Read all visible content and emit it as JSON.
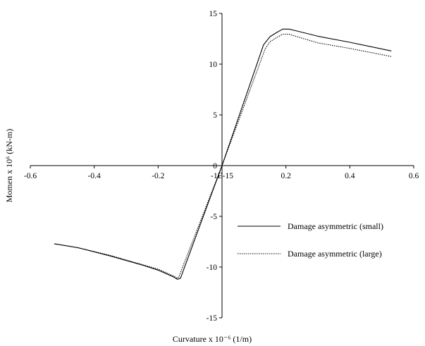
{
  "chart_data": {
    "type": "line",
    "xlabel": "Curvature x 10⁻⁶ (1/m)",
    "ylabel": "Momen x 10⁶ (kN-m)",
    "xlim": [
      -0.6,
      0.6
    ],
    "ylim": [
      -15,
      15
    ],
    "x_ticks": [
      "-0.6",
      "-0.4",
      "-0.2",
      "-1E-15",
      "0.2",
      "0.4",
      "0.6"
    ],
    "y_ticks": [
      "15",
      "10",
      "5",
      "0",
      "-5",
      "-10",
      "-15"
    ],
    "grid": false,
    "legend_position": "lower-right",
    "series": [
      {
        "name": "Damage asymmetric (small)",
        "style": "solid",
        "x": [
          -0.525,
          -0.45,
          -0.35,
          -0.25,
          -0.2,
          -0.15,
          -0.14,
          -0.13,
          0,
          0.13,
          0.15,
          0.17,
          0.19,
          0.21,
          0.23,
          0.3,
          0.4,
          0.53
        ],
        "y": [
          -7.7,
          -8.1,
          -8.9,
          -9.8,
          -10.3,
          -11.0,
          -11.2,
          -11.1,
          0,
          11.9,
          12.7,
          13.1,
          13.45,
          13.45,
          13.3,
          12.75,
          12.15,
          11.3
        ]
      },
      {
        "name": "Damage asymmetric (large)",
        "style": "dotted",
        "x": [
          -0.525,
          -0.45,
          -0.35,
          -0.25,
          -0.2,
          -0.15,
          -0.14,
          -0.135,
          0,
          0.135,
          0.15,
          0.17,
          0.19,
          0.21,
          0.23,
          0.3,
          0.4,
          0.53
        ],
        "y": [
          -7.7,
          -8.1,
          -8.85,
          -9.75,
          -10.2,
          -10.9,
          -11.1,
          -10.95,
          0,
          11.5,
          12.2,
          12.6,
          12.95,
          12.95,
          12.75,
          12.1,
          11.55,
          10.75
        ]
      }
    ]
  }
}
